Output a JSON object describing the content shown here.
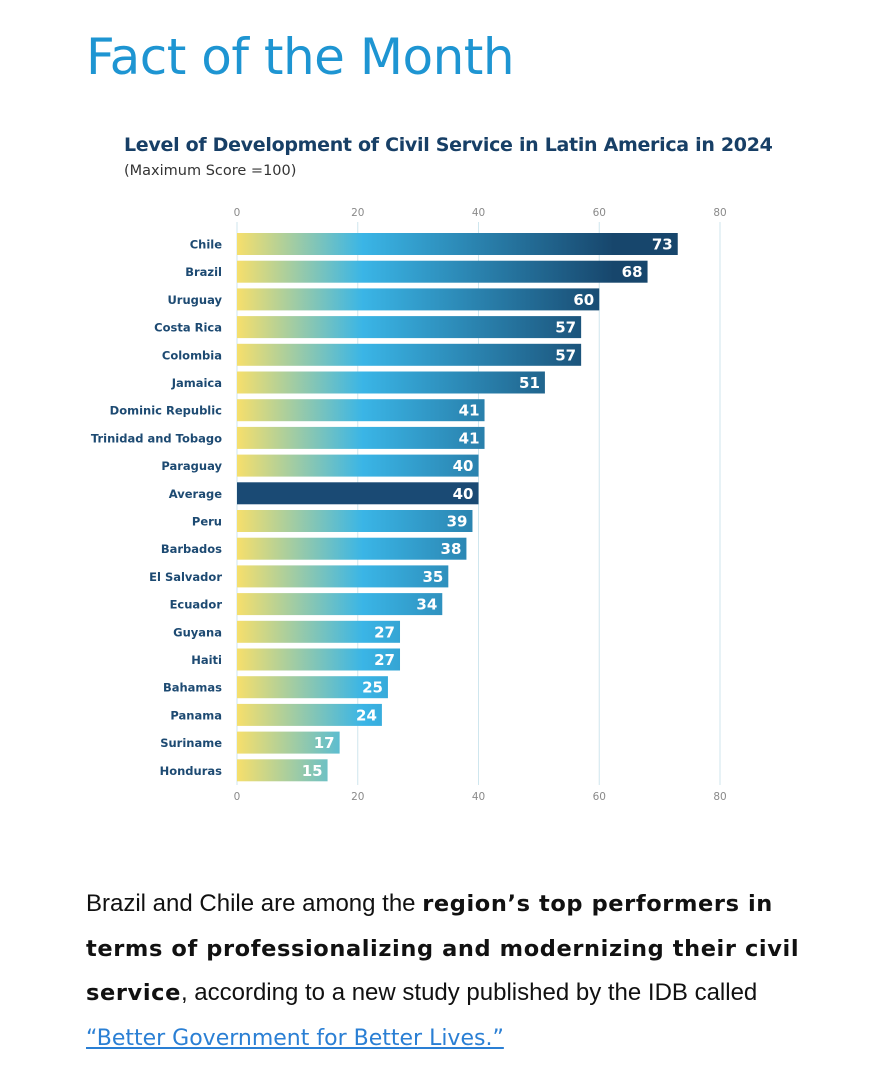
{
  "page": {
    "title": "Fact of the Month"
  },
  "chart_data": {
    "type": "bar",
    "orientation": "horizontal",
    "title": "Level of Development of Civil Service in Latin America in 2024",
    "subtitle": "(Maximum Score =100)",
    "categories": [
      "Chile",
      "Brazil",
      "Uruguay",
      "Costa Rica",
      "Colombia",
      "Jamaica",
      "Dominic Republic",
      "Trinidad and Tobago",
      "Paraguay",
      "Average",
      "Peru",
      "Barbados",
      "El Salvador",
      "Ecuador",
      "Guyana",
      "Haiti",
      "Bahamas",
      "Panama",
      "Suriname",
      "Honduras"
    ],
    "values": [
      73,
      68,
      60,
      57,
      57,
      51,
      41,
      41,
      40,
      40,
      39,
      38,
      35,
      34,
      27,
      27,
      25,
      24,
      17,
      15
    ],
    "highlight_category": "Average",
    "xlim": [
      0,
      80
    ],
    "x_ticks": [
      "0",
      "20",
      "40",
      "60",
      "80"
    ],
    "x_ticks_position": "top and bottom",
    "grid": true,
    "data_labels": true,
    "legend": "none",
    "colors": {
      "gradient_start": "#f6df6c",
      "gradient_mid": "#3ab5e6",
      "gradient_end": "#17466c",
      "highlight_bar": "#1a4a74",
      "grid": "#cfe6ee",
      "category_label": "#1d4a72",
      "tick_label": "#8a8a8a"
    }
  },
  "paragraph": {
    "text_1": "Brazil and Chile are among the ",
    "bold": "region’s top performers in terms of professionalizing and modernizing their civil service",
    "text_2": ", according to a new study published by the IDB called ",
    "link": "“Better Government for Better Lives.”"
  }
}
